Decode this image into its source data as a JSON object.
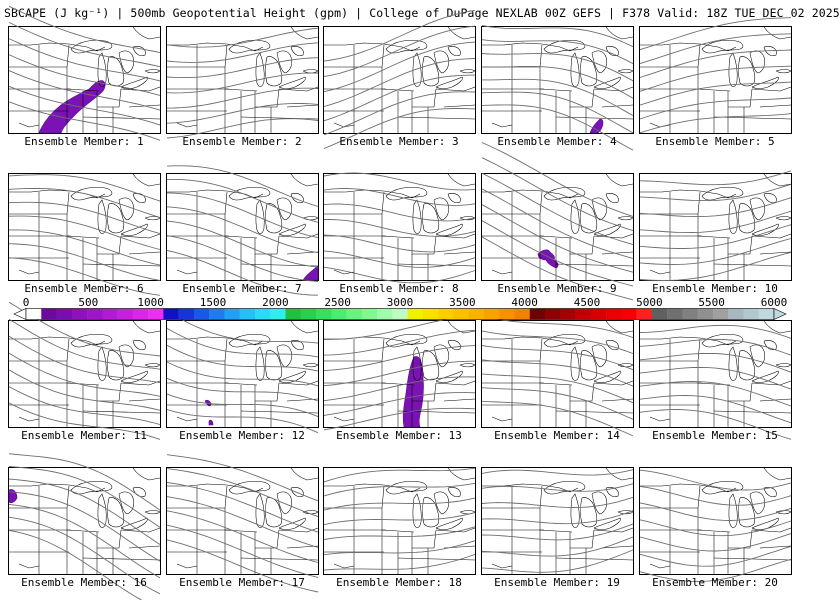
{
  "header": {
    "title": "SBCAPE (J kg⁻¹) | 500mb Geopotential Height (gpm) | College of DuPage NEXLAB 00Z GEFS | F378 Valid: 18Z TUE DEC 02 2025"
  },
  "panels": [
    {
      "label": "Ensemble Member: 1",
      "tilt": 0.55,
      "cape": "p1"
    },
    {
      "label": "Ensemble Member: 2",
      "tilt": -0.05,
      "cape": ""
    },
    {
      "label": "Ensemble Member: 3",
      "tilt": -0.35,
      "cape": ""
    },
    {
      "label": "Ensemble Member: 4",
      "tilt": 0.45,
      "cape": "p4"
    },
    {
      "label": "Ensemble Member: 5",
      "tilt": -0.3,
      "cape": ""
    },
    {
      "label": "Ensemble Member: 6",
      "tilt": 0.25,
      "cape": ""
    },
    {
      "label": "Ensemble Member: 7",
      "tilt": 0.3,
      "cape": "p7"
    },
    {
      "label": "Ensemble Member: 8",
      "tilt": -0.1,
      "cape": ""
    },
    {
      "label": "Ensemble Member: 9",
      "tilt": 0.7,
      "cape": "p9"
    },
    {
      "label": "Ensemble Member: 10",
      "tilt": -0.2,
      "cape": ""
    },
    {
      "label": "Ensemble Member: 11",
      "tilt": 0.6,
      "cape": ""
    },
    {
      "label": "Ensemble Member: 12",
      "tilt": 0.5,
      "cape": "p12"
    },
    {
      "label": "Ensemble Member: 13",
      "tilt": -0.15,
      "cape": "p13"
    },
    {
      "label": "Ensemble Member: 14",
      "tilt": 0.4,
      "cape": ""
    },
    {
      "label": "Ensemble Member: 15",
      "tilt": 0.2,
      "cape": ""
    },
    {
      "label": "Ensemble Member: 16",
      "tilt": 0.65,
      "cape": "p16"
    },
    {
      "label": "Ensemble Member: 17",
      "tilt": 0.45,
      "cape": ""
    },
    {
      "label": "Ensemble Member: 18",
      "tilt": -0.3,
      "cape": ""
    },
    {
      "label": "Ensemble Member: 19",
      "tilt": -0.25,
      "cape": ""
    },
    {
      "label": "Ensemble Member: 20",
      "tilt": -0.05,
      "cape": ""
    }
  ],
  "colorbar": {
    "ticks": [
      "0",
      "500",
      "1000",
      "1500",
      "2000",
      "2500",
      "3000",
      "3500",
      "4000",
      "4500",
      "5000",
      "5500",
      "6000"
    ],
    "colors": [
      "#ffffff",
      "#6a0aa0",
      "#7a0cb0",
      "#8e10be",
      "#a014cc",
      "#b418d8",
      "#c81ee2",
      "#dc24ea",
      "#ee2cf2",
      "#1010c8",
      "#1434dc",
      "#1858ea",
      "#1c7cf2",
      "#20a0f6",
      "#24c0f8",
      "#28dcf8",
      "#2cf0ee",
      "#20c040",
      "#28d050",
      "#34e060",
      "#48ee70",
      "#64f480",
      "#80f890",
      "#a0fcaa",
      "#c0fcc0",
      "#f0f000",
      "#f8e000",
      "#fcd000",
      "#fcc000",
      "#fcb000",
      "#fca000",
      "#f89000",
      "#f48000",
      "#700000",
      "#900000",
      "#a80000",
      "#c00000",
      "#d40000",
      "#e80000",
      "#f40000",
      "#ff2020",
      "#606060",
      "#707070",
      "#808080",
      "#909090",
      "#a0a0a0",
      "#a8b8c0",
      "#b0c8d0",
      "#c0d8e0"
    ]
  }
}
